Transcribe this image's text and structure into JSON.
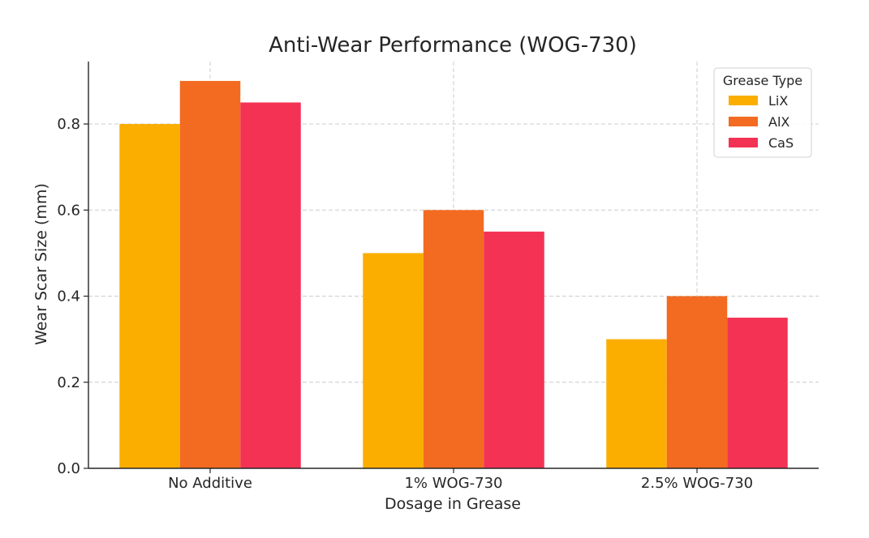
{
  "chart_data": {
    "type": "bar",
    "title": "Anti-Wear Performance (WOG-730)",
    "xlabel": "Dosage in Grease",
    "ylabel": "Wear Scar Size (mm)",
    "categories": [
      "No Additive",
      "1% WOG-730",
      "2.5% WOG-730"
    ],
    "series": [
      {
        "name": "LiX",
        "color": "#FBAE00",
        "values": [
          0.8,
          0.5,
          0.3
        ]
      },
      {
        "name": "AlX",
        "color": "#F26B21",
        "values": [
          0.9,
          0.6,
          0.4
        ]
      },
      {
        "name": "CaS",
        "color": "#F43254",
        "values": [
          0.85,
          0.55,
          0.35
        ]
      }
    ],
    "ylim": [
      0,
      0.945
    ],
    "yticks": [
      0.0,
      0.2,
      0.4,
      0.6,
      0.8
    ],
    "ytick_labels": [
      "0.0",
      "0.2",
      "0.4",
      "0.6",
      "0.8"
    ],
    "grid": true,
    "legend": {
      "title": "Grease Type",
      "position": "top-right"
    }
  }
}
